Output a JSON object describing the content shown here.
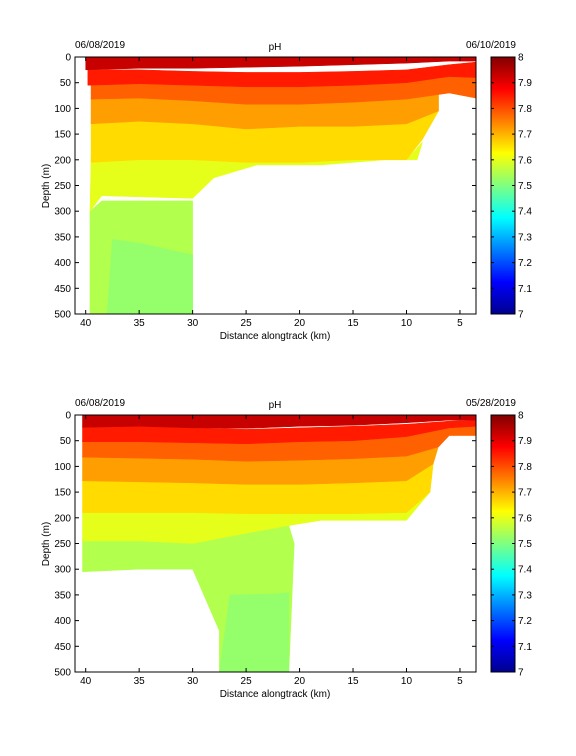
{
  "chart_data": [
    {
      "type": "heatmap",
      "title": "pH",
      "date_left": "06/08/2019",
      "date_right": "06/10/2019",
      "xlabel": "Distance alongtrack (km)",
      "ylabel": "Depth (m)",
      "xlim": [
        41,
        3.5
      ],
      "ylim": [
        0,
        500
      ],
      "x_ticks": [
        40,
        35,
        30,
        25,
        20,
        15,
        10,
        5
      ],
      "y_ticks": [
        0,
        50,
        100,
        150,
        200,
        250,
        300,
        350,
        400,
        450,
        500
      ],
      "colorbar": {
        "min": 7,
        "max": 8,
        "ticks": [
          8,
          7.9,
          7.8,
          7.7,
          7.6,
          7.5,
          7.4,
          7.3,
          7.2,
          7.1,
          7
        ]
      },
      "layers": [
        {
          "value": 7.55,
          "top": [
            [
              39.6,
              300
            ],
            [
              38.5,
              280
            ],
            [
              30,
              280
            ]
          ],
          "bottom": [
            [
              39.6,
              500
            ],
            [
              30,
              500
            ]
          ]
        },
        {
          "value": 7.52,
          "top": [
            [
              37.5,
              355
            ],
            [
              35,
              362
            ],
            [
              30,
              385
            ]
          ],
          "bottom": [
            [
              38,
              500
            ],
            [
              30,
              500
            ]
          ]
        },
        {
          "value": 7.6,
          "top": [
            [
              39.5,
              195
            ],
            [
              35,
              195
            ],
            [
              30,
              200
            ],
            [
              27,
              200
            ],
            [
              22,
              205
            ],
            [
              15,
              200
            ],
            [
              10,
              200
            ],
            [
              8.5,
              165
            ]
          ],
          "bottom": [
            [
              39.6,
              300
            ],
            [
              38.5,
              270
            ],
            [
              30,
              275
            ],
            [
              28,
              235
            ],
            [
              24,
              210
            ],
            [
              18,
              210
            ],
            [
              12,
              200
            ],
            [
              9,
              200
            ],
            [
              8.5,
              165
            ]
          ]
        },
        {
          "value": 7.66,
          "top": [
            [
              39.5,
              125
            ],
            [
              35,
              125
            ],
            [
              30,
              130
            ],
            [
              25,
              140
            ],
            [
              20,
              135
            ],
            [
              15,
              135
            ],
            [
              10,
              130
            ],
            [
              7,
              105
            ]
          ],
          "bottom": [
            [
              39.5,
              205
            ],
            [
              35,
              200
            ],
            [
              30,
              200
            ],
            [
              25,
              205
            ],
            [
              20,
              205
            ],
            [
              15,
              200
            ],
            [
              10,
              200
            ],
            [
              8.5,
              160
            ]
          ]
        },
        {
          "value": 7.72,
          "top": [
            [
              39.5,
              80
            ],
            [
              35,
              80
            ],
            [
              30,
              85
            ],
            [
              25,
              90
            ],
            [
              20,
              90
            ],
            [
              15,
              85
            ],
            [
              10,
              82
            ],
            [
              7,
              62
            ]
          ],
          "bottom": [
            [
              39.5,
              130
            ],
            [
              35,
              125
            ],
            [
              30,
              130
            ],
            [
              25,
              140
            ],
            [
              20,
              135
            ],
            [
              15,
              135
            ],
            [
              10,
              130
            ],
            [
              7,
              105
            ]
          ]
        },
        {
          "value": 7.78,
          "top": [
            [
              39.5,
              55
            ],
            [
              35,
              52
            ],
            [
              30,
              55
            ],
            [
              25,
              58
            ],
            [
              20,
              58
            ],
            [
              15,
              55
            ],
            [
              10,
              50
            ],
            [
              6,
              35
            ],
            [
              3.5,
              30
            ]
          ],
          "bottom": [
            [
              39.5,
              82
            ],
            [
              35,
              80
            ],
            [
              30,
              85
            ],
            [
              25,
              92
            ],
            [
              20,
              92
            ],
            [
              15,
              88
            ],
            [
              10,
              82
            ],
            [
              6,
              70
            ],
            [
              3.5,
              80
            ]
          ]
        },
        {
          "value": 7.85,
          "top": [
            [
              39.8,
              25
            ],
            [
              35,
              25
            ],
            [
              30,
              28
            ],
            [
              25,
              30
            ],
            [
              20,
              30
            ],
            [
              15,
              28
            ],
            [
              10,
              25
            ],
            [
              6,
              15
            ],
            [
              3.5,
              10
            ]
          ],
          "bottom": [
            [
              39.8,
              55
            ],
            [
              35,
              52
            ],
            [
              30,
              55
            ],
            [
              25,
              58
            ],
            [
              20,
              58
            ],
            [
              15,
              55
            ],
            [
              10,
              50
            ],
            [
              6,
              38
            ],
            [
              3.5,
              40
            ]
          ]
        },
        {
          "value": 7.93,
          "top": [
            [
              40,
              0
            ],
            [
              3.5,
              0
            ]
          ],
          "bottom": [
            [
              40,
              25
            ],
            [
              35,
              22
            ],
            [
              30,
              22
            ],
            [
              25,
              20
            ],
            [
              20,
              18
            ],
            [
              15,
              15
            ],
            [
              10,
              12
            ],
            [
              6,
              8
            ],
            [
              3.5,
              8
            ]
          ]
        }
      ]
    },
    {
      "type": "heatmap",
      "title": "pH",
      "date_left": "06/08/2019",
      "date_right": "05/28/2019",
      "xlabel": "Distance alongtrack (km)",
      "ylabel": "Depth (m)",
      "xlim": [
        41,
        3.5
      ],
      "ylim": [
        0,
        500
      ],
      "x_ticks": [
        40,
        35,
        30,
        25,
        20,
        15,
        10,
        5
      ],
      "y_ticks": [
        0,
        50,
        100,
        150,
        200,
        250,
        300,
        350,
        400,
        450,
        500
      ],
      "colorbar": {
        "min": 7,
        "max": 8,
        "ticks": [
          8,
          7.9,
          7.8,
          7.7,
          7.6,
          7.5,
          7.4,
          7.3,
          7.2,
          7.1,
          7
        ]
      },
      "layers": [
        {
          "value": 7.55,
          "top": [
            [
              40.3,
              240
            ],
            [
              35,
              245
            ],
            [
              30,
              250
            ],
            [
              25,
              230
            ],
            [
              21,
              215
            ]
          ],
          "bottom": [
            [
              40.3,
              305
            ],
            [
              35,
              300
            ],
            [
              30,
              300
            ],
            [
              27.5,
              420
            ],
            [
              27.5,
              500
            ],
            [
              21,
              500
            ],
            [
              20.5,
              250
            ]
          ]
        },
        {
          "value": 7.52,
          "top": [
            [
              26.5,
              350
            ],
            [
              22,
              348
            ],
            [
              21,
              345
            ]
          ],
          "bottom": [
            [
              27.5,
              500
            ],
            [
              21,
              500
            ]
          ]
        },
        {
          "value": 7.6,
          "top": [
            [
              40.3,
              185
            ],
            [
              35,
              188
            ],
            [
              30,
              190
            ],
            [
              25,
              190
            ],
            [
              20,
              192
            ],
            [
              15,
              190
            ],
            [
              10,
              188
            ],
            [
              7.8,
              150
            ]
          ],
          "bottom": [
            [
              40.3,
              245
            ],
            [
              35,
              245
            ],
            [
              30,
              250
            ],
            [
              25,
              230
            ],
            [
              21,
              215
            ],
            [
              18,
              205
            ],
            [
              15,
              205
            ],
            [
              10,
              205
            ],
            [
              7.8,
              150
            ]
          ]
        },
        {
          "value": 7.66,
          "top": [
            [
              40.3,
              125
            ],
            [
              35,
              128
            ],
            [
              30,
              130
            ],
            [
              25,
              135
            ],
            [
              20,
              135
            ],
            [
              15,
              130
            ],
            [
              10,
              125
            ],
            [
              7.5,
              95
            ]
          ],
          "bottom": [
            [
              40.3,
              190
            ],
            [
              35,
              190
            ],
            [
              30,
              190
            ],
            [
              25,
              192
            ],
            [
              20,
              192
            ],
            [
              15,
              192
            ],
            [
              10,
              190
            ],
            [
              7.8,
              150
            ]
          ]
        },
        {
          "value": 7.72,
          "top": [
            [
              40.3,
              80
            ],
            [
              35,
              82
            ],
            [
              30,
              85
            ],
            [
              25,
              90
            ],
            [
              20,
              88
            ],
            [
              15,
              85
            ],
            [
              10,
              80
            ],
            [
              7,
              60
            ]
          ],
          "bottom": [
            [
              40.3,
              128
            ],
            [
              35,
              130
            ],
            [
              30,
              132
            ],
            [
              25,
              135
            ],
            [
              20,
              135
            ],
            [
              15,
              132
            ],
            [
              10,
              128
            ],
            [
              7.5,
              95
            ]
          ]
        },
        {
          "value": 7.78,
          "top": [
            [
              40.3,
              50
            ],
            [
              35,
              50
            ],
            [
              30,
              52
            ],
            [
              25,
              55
            ],
            [
              20,
              50
            ],
            [
              15,
              48
            ],
            [
              10,
              40
            ],
            [
              6,
              20
            ],
            [
              3.5,
              20
            ]
          ],
          "bottom": [
            [
              40.3,
              82
            ],
            [
              35,
              84
            ],
            [
              30,
              86
            ],
            [
              25,
              90
            ],
            [
              20,
              88
            ],
            [
              15,
              85
            ],
            [
              10,
              80
            ],
            [
              7,
              62
            ],
            [
              6,
              40
            ],
            [
              3.5,
              40
            ]
          ]
        },
        {
          "value": 7.85,
          "top": [
            [
              40.3,
              22
            ],
            [
              35,
              22
            ],
            [
              30,
              25
            ],
            [
              25,
              28
            ],
            [
              20,
              25
            ],
            [
              15,
              22
            ],
            [
              10,
              18
            ],
            [
              6,
              12
            ],
            [
              3.5,
              10
            ]
          ],
          "bottom": [
            [
              40.3,
              52
            ],
            [
              35,
              52
            ],
            [
              30,
              54
            ],
            [
              25,
              56
            ],
            [
              20,
              52
            ],
            [
              15,
              50
            ],
            [
              10,
              42
            ],
            [
              6,
              25
            ],
            [
              3.5,
              22
            ]
          ]
        },
        {
          "value": 7.93,
          "top": [
            [
              40.3,
              0
            ],
            [
              3.5,
              0
            ]
          ],
          "bottom": [
            [
              40.3,
              24
            ],
            [
              35,
              22
            ],
            [
              30,
              25
            ],
            [
              25,
              26
            ],
            [
              20,
              22
            ],
            [
              15,
              20
            ],
            [
              10,
              15
            ],
            [
              6,
              10
            ],
            [
              3.5,
              10
            ]
          ]
        }
      ]
    }
  ]
}
